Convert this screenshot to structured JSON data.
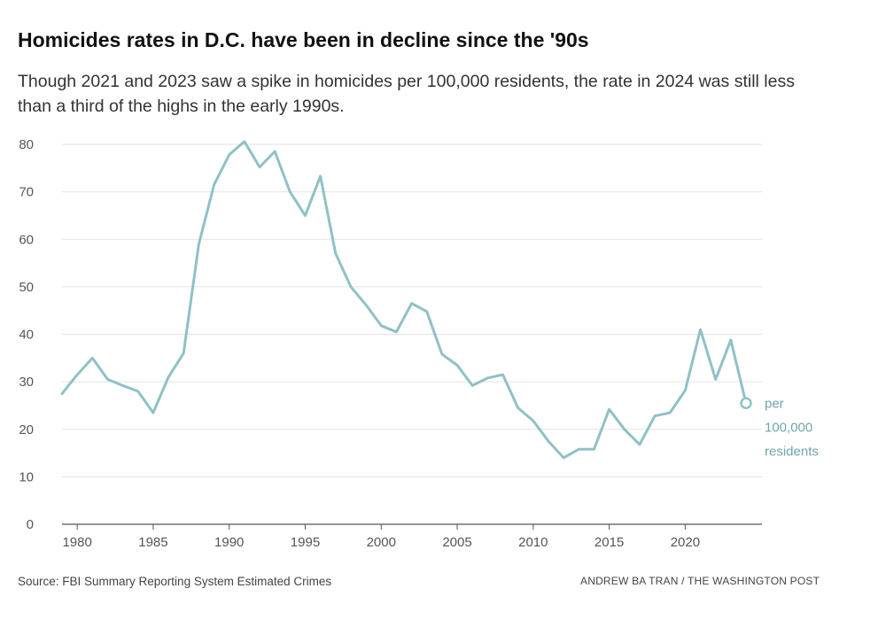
{
  "chart_data": {
    "type": "line",
    "title": "Homicides rates in D.C. have been in decline since the '90s",
    "subtitle": "Though 2021 and 2023 saw a spike in homicides per 100,000 residents, the rate in 2024 was still less than a third of the highs in the early 1990s.",
    "xlabel": "",
    "ylabel": "",
    "xlim": [
      1979,
      2024
    ],
    "ylim": [
      0,
      80
    ],
    "x_ticks": [
      1980,
      1985,
      1990,
      1995,
      2000,
      2005,
      2010,
      2015,
      2020
    ],
    "y_ticks": [
      0,
      10,
      20,
      30,
      40,
      50,
      60,
      70,
      80
    ],
    "grid": true,
    "series": [
      {
        "name": "per 100,000 residents",
        "color": "#8fc1c6",
        "x": [
          1979,
          1980,
          1981,
          1982,
          1983,
          1984,
          1985,
          1986,
          1987,
          1988,
          1989,
          1990,
          1991,
          1992,
          1993,
          1994,
          1995,
          1996,
          1997,
          1998,
          1999,
          2000,
          2001,
          2002,
          2003,
          2004,
          2005,
          2006,
          2007,
          2008,
          2009,
          2010,
          2011,
          2012,
          2013,
          2014,
          2015,
          2016,
          2017,
          2018,
          2019,
          2020,
          2021,
          2022,
          2023,
          2024
        ],
        "values": [
          27.5,
          31.5,
          35,
          30.5,
          29.2,
          28,
          23.5,
          31,
          36,
          59,
          71.5,
          77.8,
          80.6,
          75.2,
          78.5,
          70,
          65,
          73.3,
          57,
          50,
          46.2,
          41.8,
          40.5,
          46.5,
          44.8,
          35.8,
          33.5,
          29.2,
          30.8,
          31.5,
          24.5,
          21.8,
          17.5,
          14,
          15.8,
          15.8,
          24.2,
          20,
          16.8,
          22.8,
          23.5,
          28.2,
          41,
          30.5,
          38.8,
          25.5
        ]
      }
    ],
    "end_label": [
      "per",
      "100,000",
      "residents"
    ]
  },
  "footer": {
    "source": "Source: FBI Summary Reporting System Estimated Crimes",
    "credit": "ANDREW BA TRAN / THE WASHINGTON POST"
  }
}
